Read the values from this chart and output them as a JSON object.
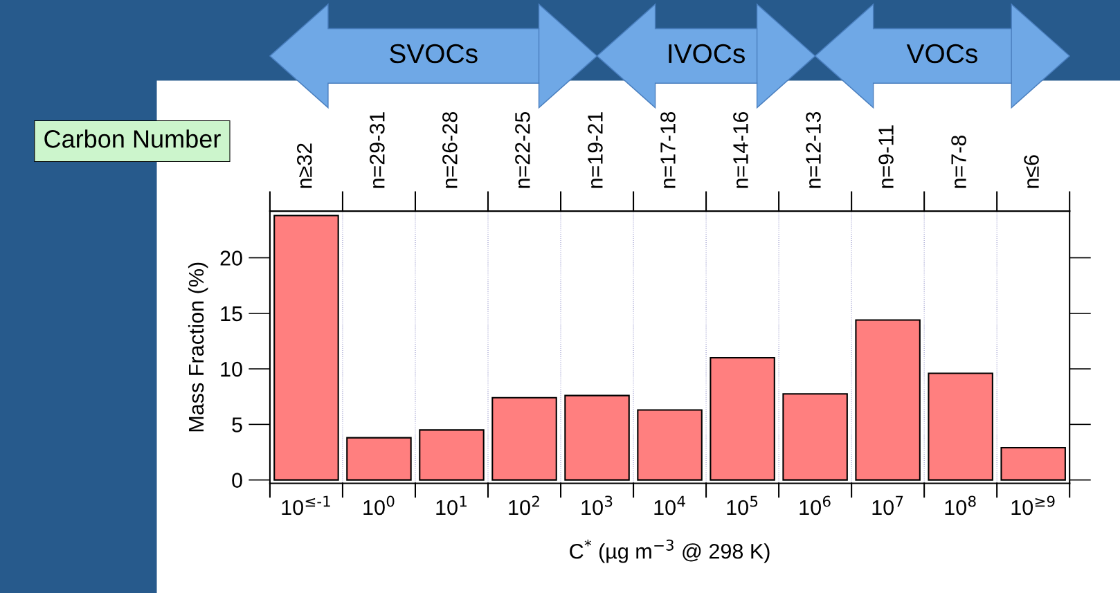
{
  "chart_data": {
    "type": "bar",
    "categories": [
      "10$^{≤-1}$",
      "10$^{0}$",
      "10$^{1}$",
      "10$^{2}$",
      "10$^{3}$",
      "10$^{4}$",
      "10$^{5}$",
      "10$^{6}$",
      "10$^{7}$",
      "10$^{8}$",
      "10$^{≥9}$"
    ],
    "values": [
      23.8,
      3.8,
      4.5,
      7.4,
      7.6,
      6.3,
      11.0,
      7.75,
      14.4,
      9.6,
      2.9
    ],
    "color": "#ff7f7f",
    "ylim": [
      -0.3,
      24.2
    ],
    "yticks": [
      0,
      5,
      10,
      15,
      20
    ],
    "ylabel": "Mass Fraction (%)",
    "xlabel": "C$^{*}$ (µg m$^{−3}$ @ 298 K)",
    "x2label": "Carbon Number",
    "grid": "x",
    "annotations": [
      "n≥32",
      "n=29-31",
      "n=26-28",
      "n=22-25",
      "n=19-21",
      "n=17-18",
      "n=14-16",
      "n=12-13",
      "n=9-11",
      "n=7-8",
      "n≤6",
      "SVOCs",
      "IVOCs",
      "VOCs"
    ]
  }
}
